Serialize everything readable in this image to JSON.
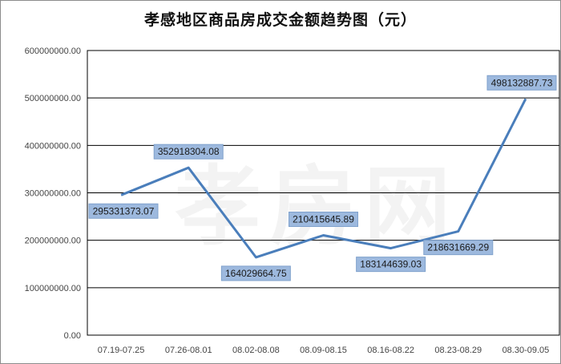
{
  "chart_data": {
    "type": "line",
    "title": "孝感地区商品房成交金额趋势图（元）",
    "categories": [
      "07.19-07.25",
      "07.26-08.01",
      "08.02-08.08",
      "08.09-08.15",
      "08.16-08.22",
      "08.23-08.29",
      "08.30-09.05"
    ],
    "values": [
      295331373.07,
      352918304.08,
      164029664.75,
      210415645.89,
      183144639.03,
      218631669.29,
      498132887.73
    ],
    "data_labels": [
      "295331373.07",
      "352918304.08",
      "164029664.75",
      "210415645.89",
      "183144639.03",
      "218631669.29",
      "498132887.73"
    ],
    "y_ticks": [
      "0.00",
      "100000000.00",
      "200000000.00",
      "300000000.00",
      "400000000.00",
      "500000000.00",
      "600000000.00"
    ],
    "ylim": [
      0,
      600000000
    ],
    "grid": true,
    "legend": "none",
    "watermark": "孝房网",
    "colors": {
      "line": "#4a7ebb",
      "label_bg": "#9db9de",
      "label_border": "#7fa1cc",
      "grid": "#000000"
    }
  }
}
